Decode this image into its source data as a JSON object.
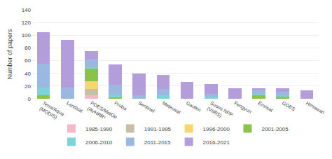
{
  "chart_data": {
    "type": "bar",
    "stacked": true,
    "categories": [
      "Terra/Aqua\n(MODIS)",
      "Landsat",
      "POES/MetOp\n(AVHRR)",
      "Proba",
      "Sentinel",
      "Meteosat",
      "Gaofen",
      "Suomi NPP\n(VIIRS)",
      "Fengyun",
      "Envisat",
      "GOES",
      "Himawari"
    ],
    "series": [
      {
        "name": "1985-1990",
        "color": "#f4b8c8",
        "values": [
          0,
          0,
          5,
          0,
          0,
          0,
          0,
          0,
          0,
          0,
          0,
          0
        ]
      },
      {
        "name": "1991-1995",
        "color": "#c8bfa8",
        "values": [
          0,
          0,
          10,
          0,
          0,
          0,
          0,
          0,
          0,
          0,
          0,
          0
        ]
      },
      {
        "name": "1996-2000",
        "color": "#f5d76e",
        "values": [
          0,
          0,
          13,
          0,
          0,
          0,
          0,
          0,
          0,
          0,
          0,
          0
        ]
      },
      {
        "name": "2001-2005",
        "color": "#8bc34a",
        "values": [
          5,
          0,
          20,
          2,
          0,
          0,
          0,
          0,
          0,
          5,
          3,
          0
        ]
      },
      {
        "name": "2006-2010",
        "color": "#7dd4d8",
        "values": [
          13,
          0,
          2,
          5,
          0,
          5,
          0,
          3,
          0,
          3,
          3,
          0
        ]
      },
      {
        "name": "2011-2015",
        "color": "#9ab8e0",
        "values": [
          37,
          18,
          12,
          15,
          5,
          10,
          0,
          5,
          0,
          5,
          5,
          0
        ]
      },
      {
        "name": "2016-2021",
        "color": "#b39ddb",
        "values": [
          50,
          75,
          13,
          32,
          35,
          23,
          27,
          15,
          17,
          4,
          5,
          13
        ]
      }
    ],
    "ylabel": "Number of papers",
    "ylim": [
      0,
      140
    ],
    "yticks": [
      0,
      20,
      40,
      60,
      80,
      100,
      120,
      140
    ],
    "grid": true,
    "legend": "bottom"
  }
}
